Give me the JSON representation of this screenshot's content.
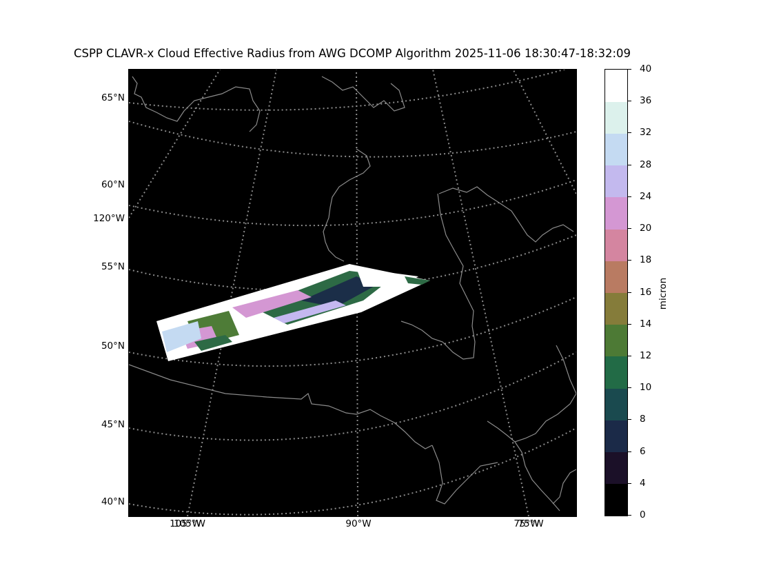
{
  "title": "CSPP CLAVR-x Cloud Effective Radius from AWG DCOMP Algorithm 2025-11-06 18:30:47-18:32:09",
  "map": {
    "projection": "lambert-conformal",
    "background": "#000000",
    "coastline_color": "#8c8c8c",
    "gridline_color": "#8c8c8c",
    "gridline_style": "dotted",
    "lat_labels": [
      "65°N",
      "60°N",
      "55°N",
      "50°N",
      "45°N",
      "40°N"
    ],
    "lon_labels_left": [
      "120°W"
    ],
    "lon_labels_bottom": [
      "105°W",
      "90°W",
      "75°W"
    ],
    "lon_labels_bottom_overlap": [
      "105°W",
      "75°W"
    ],
    "swath_description_colors": [
      "#ffffff",
      "#2d6a45",
      "#4e7c37",
      "#d497d3",
      "#c4b8f0",
      "#1b2e48"
    ]
  },
  "colorbar": {
    "label": "micron",
    "ticks": [
      "0",
      "4",
      "6",
      "8",
      "10",
      "12",
      "14",
      "16",
      "18",
      "20",
      "24",
      "28",
      "32",
      "36",
      "40"
    ],
    "colors": [
      "#000000",
      "#1b1028",
      "#1b2a48",
      "#1a4a4f",
      "#226b46",
      "#4d7a35",
      "#857c3a",
      "#b97b62",
      "#d485a0",
      "#d497d3",
      "#c3b9ee",
      "#c4daf2",
      "#dcf1ec",
      "#ffffff"
    ]
  }
}
